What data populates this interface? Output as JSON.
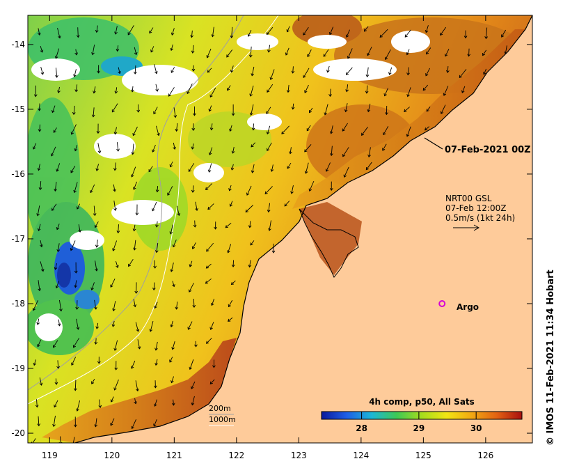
{
  "map": {
    "lon_ticks": [
      "119",
      "120",
      "121",
      "122",
      "123",
      "124",
      "125",
      "126"
    ],
    "lat_ticks": [
      "-14",
      "-15",
      "-16",
      "-17",
      "-18",
      "-19",
      "-20"
    ],
    "lon_range": [
      118.65,
      126.75
    ],
    "lat_range": [
      -20.15,
      -13.55
    ],
    "colors": {
      "land": "#fecb9a",
      "coast": "#000000",
      "contour_200m": "#a0a0a0",
      "contour_1000m": "#ffffff",
      "arrow": "#000000",
      "argo_marker": "#d500d5"
    }
  },
  "annotations": {
    "valid_time": "07-Feb-2021 00Z",
    "current_source": "NRT00 GSL",
    "current_time": "07-Feb 12:00Z",
    "current_scale": "0.5m/s (1kt 24h)",
    "argo_label": "Argo",
    "contour_200m": "200m",
    "contour_1000m": "1000m"
  },
  "argo": {
    "lon": 125.3,
    "lat": -18.0
  },
  "colorbar": {
    "title": "4h comp, p50, All Sats",
    "ticks": [
      "28",
      "29",
      "30"
    ],
    "range_degC": [
      27.3,
      30.8
    ],
    "stops": [
      "#0a1a9c",
      "#1f5ee6",
      "#1cb7d6",
      "#3ec955",
      "#a6dd1c",
      "#f2e413",
      "#f2a812",
      "#e36212",
      "#a8100f"
    ]
  },
  "credit": "© IMOS 11-Feb-2021 11:34 Hobart"
}
